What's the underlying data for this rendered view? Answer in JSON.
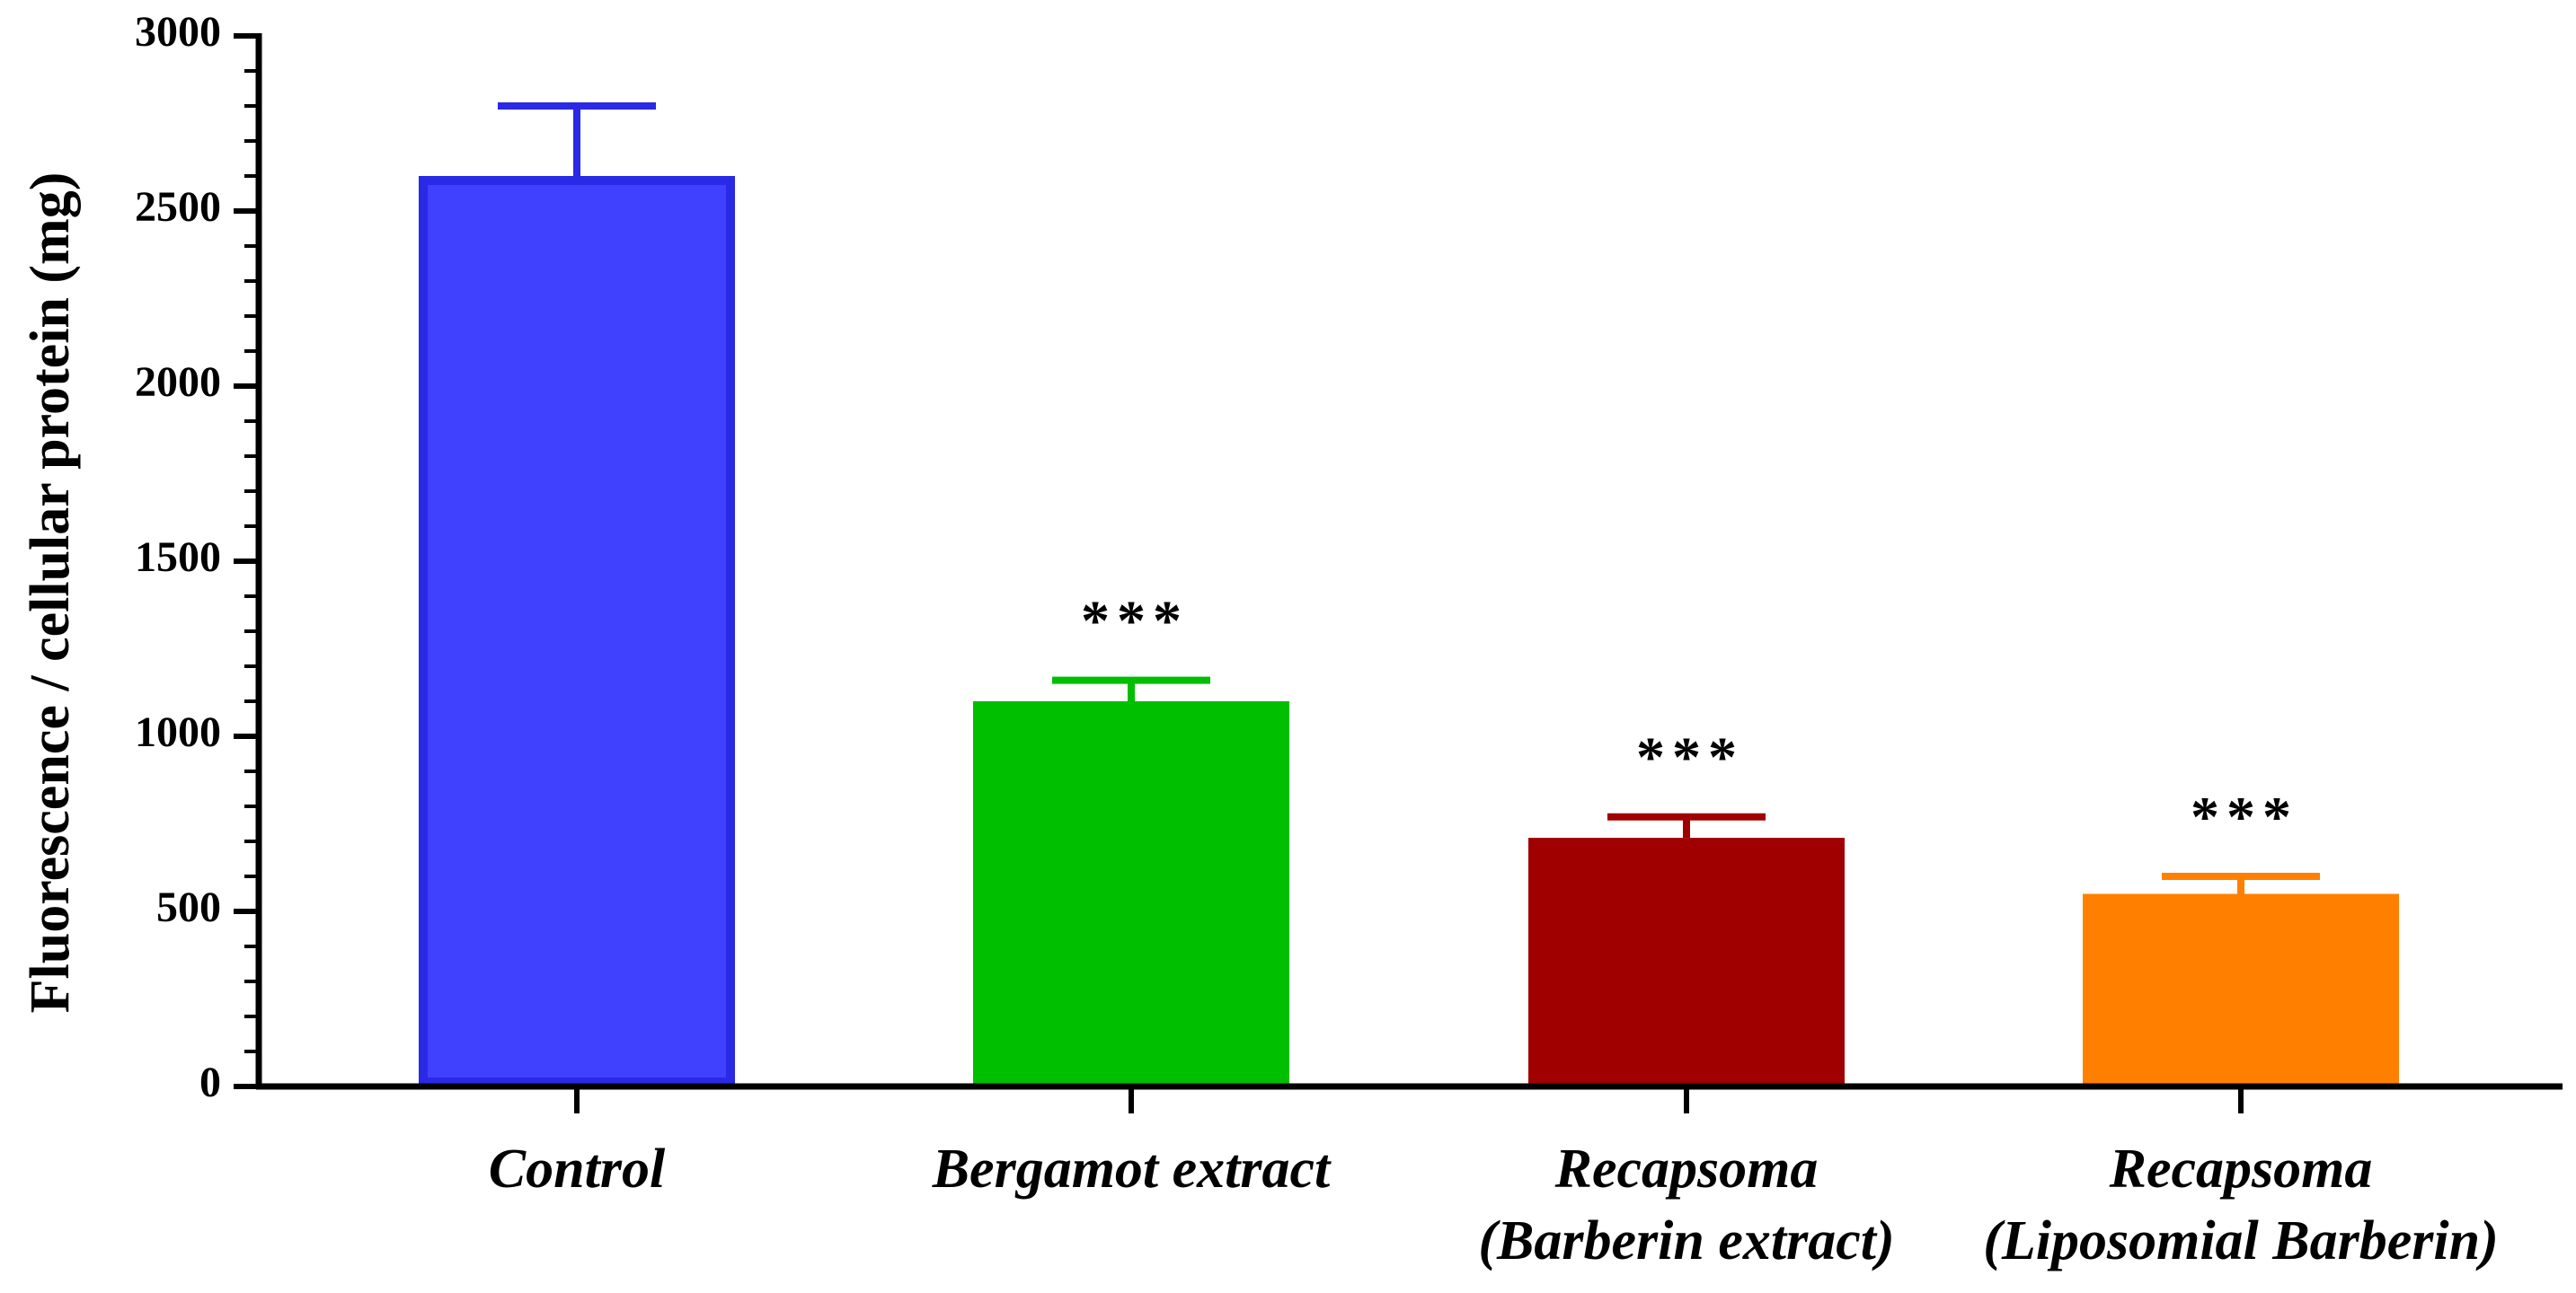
{
  "chart_data": {
    "type": "bar",
    "ylabel": "Fluorescence / cellular protein (mg)",
    "xlabel": "",
    "ylim": [
      0,
      3000
    ],
    "yticks": [
      "0",
      "500",
      "1000",
      "1500",
      "2000",
      "2500",
      "3000"
    ],
    "categories": [
      [
        "Control"
      ],
      [
        "Bergamot extract"
      ],
      [
        "Recapsoma",
        "(Barberin extract)"
      ],
      [
        "Recapsoma",
        "(Liposomial Barberin)"
      ]
    ],
    "values": [
      2600,
      1100,
      710,
      550
    ],
    "errors": [
      200,
      60,
      60,
      50
    ],
    "significance": [
      "",
      "***",
      "***",
      "***"
    ],
    "colors": [
      "#4040FF",
      "#00BF00",
      "#A00000",
      "#FF8000"
    ],
    "edge_colors": [
      "#2929E6",
      "#00BF00",
      "#A00000",
      "#FF8000"
    ],
    "grid": false
  }
}
